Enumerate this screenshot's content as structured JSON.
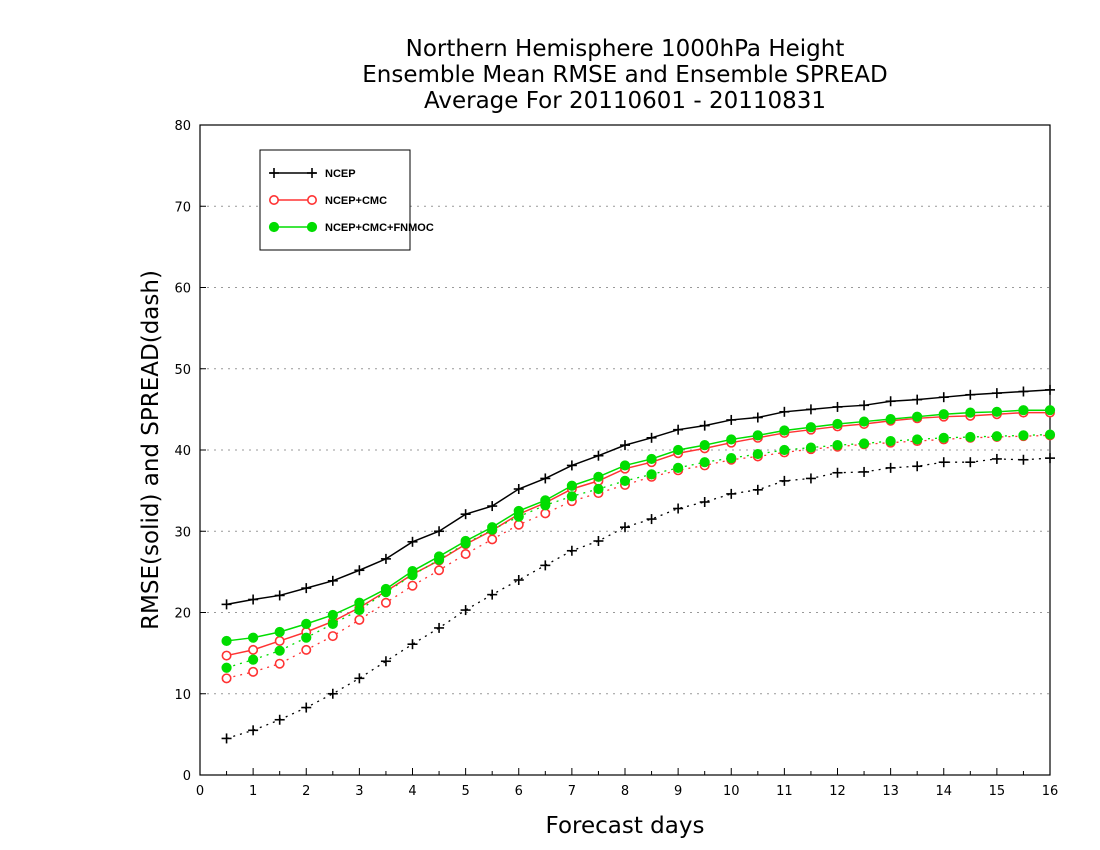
{
  "chart_data": {
    "type": "line",
    "title_lines": [
      "Northern Hemisphere 1000hPa Height",
      "Ensemble Mean RMSE and Ensemble SPREAD",
      "Average For 20110601 - 20110831"
    ],
    "xlabel": "Forecast days",
    "ylabel": "RMSE(solid) and SPREAD(dash)",
    "xlim": [
      0,
      16
    ],
    "ylim": [
      0,
      80
    ],
    "xticks": [
      "0",
      "1",
      "2",
      "3",
      "4",
      "5",
      "6",
      "7",
      "8",
      "9",
      "10",
      "11",
      "12",
      "13",
      "14",
      "15",
      "16"
    ],
    "yticks": [
      "0",
      "10",
      "20",
      "30",
      "40",
      "50",
      "60",
      "70",
      "80"
    ],
    "grid": "horizontal dotted",
    "legend_position": "top-left",
    "x": [
      0.5,
      1,
      1.5,
      2,
      2.5,
      3,
      3.5,
      4,
      4.5,
      5,
      5.5,
      6,
      6.5,
      7,
      7.5,
      8,
      8.5,
      9,
      9.5,
      10,
      10.5,
      11,
      11.5,
      12,
      12.5,
      13,
      13.5,
      14,
      14.5,
      15,
      15.5,
      16
    ],
    "series": [
      {
        "name": "NCEP",
        "color": "#000000",
        "marker": "plus",
        "rmse": [
          21.0,
          21.6,
          22.1,
          23.0,
          23.9,
          25.2,
          26.6,
          28.7,
          30.0,
          32.1,
          33.1,
          35.2,
          36.5,
          38.1,
          39.3,
          40.6,
          41.5,
          42.5,
          43.0,
          43.7,
          44.0,
          44.7,
          45.0,
          45.3,
          45.5,
          46.0,
          46.2,
          46.5,
          46.8,
          47.0,
          47.2,
          47.4
        ],
        "spread": [
          4.5,
          5.5,
          6.8,
          8.3,
          10.0,
          11.9,
          14.0,
          16.1,
          18.1,
          20.3,
          22.2,
          24.0,
          25.8,
          27.6,
          28.8,
          30.5,
          31.5,
          32.8,
          33.6,
          34.6,
          35.1,
          36.2,
          36.5,
          37.2,
          37.3,
          37.8,
          38.0,
          38.5,
          38.5,
          38.9,
          38.8,
          39.0
        ]
      },
      {
        "name": "NCEP+CMC",
        "color": "#ff3333",
        "marker": "open-circle",
        "rmse": [
          14.7,
          15.4,
          16.5,
          17.6,
          18.9,
          20.6,
          22.6,
          24.7,
          26.4,
          28.4,
          30.1,
          32.1,
          33.5,
          35.2,
          36.2,
          37.7,
          38.5,
          39.6,
          40.2,
          40.9,
          41.5,
          42.1,
          42.5,
          42.9,
          43.2,
          43.6,
          43.9,
          44.1,
          44.2,
          44.4,
          44.6,
          44.6
        ],
        "spread": [
          11.9,
          12.7,
          13.7,
          15.4,
          17.1,
          19.1,
          21.2,
          23.3,
          25.2,
          27.2,
          29.0,
          30.8,
          32.2,
          33.7,
          34.7,
          35.7,
          36.7,
          37.5,
          38.1,
          38.8,
          39.2,
          39.7,
          40.1,
          40.4,
          40.7,
          40.9,
          41.1,
          41.3,
          41.5,
          41.6,
          41.7,
          41.8
        ]
      },
      {
        "name": "NCEP+CMC+FNMOC",
        "color": "#00dd00",
        "marker": "filled-circle",
        "rmse": [
          16.5,
          16.9,
          17.6,
          18.6,
          19.7,
          21.2,
          22.9,
          25.1,
          26.9,
          28.8,
          30.5,
          32.5,
          33.8,
          35.6,
          36.7,
          38.1,
          38.9,
          40.0,
          40.6,
          41.3,
          41.8,
          42.4,
          42.8,
          43.2,
          43.5,
          43.8,
          44.1,
          44.4,
          44.6,
          44.7,
          44.9,
          44.9
        ],
        "spread": [
          13.2,
          14.2,
          15.3,
          16.9,
          18.6,
          20.3,
          22.5,
          24.6,
          26.5,
          28.5,
          30.2,
          31.8,
          33.2,
          34.3,
          35.2,
          36.2,
          37.0,
          37.8,
          38.5,
          39.0,
          39.5,
          40.0,
          40.3,
          40.6,
          40.8,
          41.1,
          41.3,
          41.5,
          41.6,
          41.7,
          41.8,
          41.9
        ]
      }
    ]
  }
}
